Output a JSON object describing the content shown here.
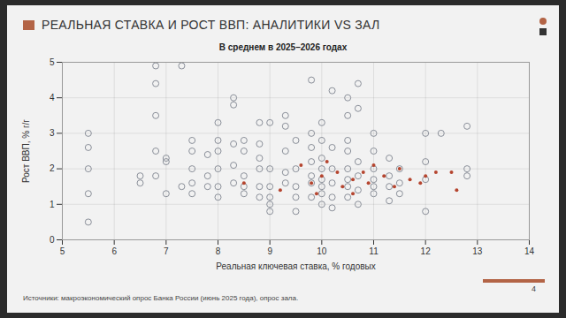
{
  "chart_data": {
    "type": "scatter",
    "title": "РЕАЛЬНАЯ СТАВКА И РОСТ ВВП: АНАЛИТИКИ VS ЗАЛ",
    "subtitle": "В среднем в 2025–2026 годах",
    "xlabel": "Реальная ключевая ставка, % годовых",
    "ylabel": "Рост ВВП, % г/г",
    "source": "Источники: макроэкономический опрос Банка России (июнь 2025 года), опрос зала.",
    "page": "4",
    "xlim": [
      5,
      14
    ],
    "xticks": [
      5,
      6,
      7,
      8,
      9,
      10,
      11,
      12,
      13,
      14
    ],
    "ylim": [
      0,
      5
    ],
    "yticks": [
      0,
      1,
      2,
      3,
      4,
      5
    ],
    "grid": true,
    "series": [
      {
        "color": "#8a8f99",
        "marker": "circle_open",
        "x": [
          5.5,
          5.5,
          5.5,
          5.5,
          5.5,
          6.5,
          6.5,
          6.8,
          6.8,
          6.8,
          6.8,
          6.8,
          7,
          7,
          7,
          7.3,
          7.3,
          7.5,
          7.5,
          7.5,
          7.5,
          7.5,
          7.8,
          7.8,
          7.8,
          8,
          8,
          8,
          8,
          8,
          8,
          8.3,
          8.3,
          8.3,
          8.3,
          8.3,
          8.5,
          8.5,
          8.5,
          8.5,
          8.5,
          8.8,
          8.8,
          8.8,
          8.8,
          8.8,
          8.8,
          9,
          9,
          9,
          9,
          9,
          9,
          9.3,
          9.3,
          9.3,
          9.3,
          9.3,
          9.5,
          9.5,
          9.5,
          9.5,
          9.5,
          9.8,
          9.8,
          9.8,
          9.8,
          9.8,
          9.8,
          9.8,
          10,
          10,
          10,
          10,
          10,
          10,
          10,
          10,
          10.2,
          10.2,
          10.2,
          10.2,
          10.2,
          10.2,
          10.5,
          10.5,
          10.5,
          10.5,
          10.5,
          10.5,
          10.5,
          10.5,
          10.7,
          10.7,
          10.7,
          10.7,
          10.7,
          10.7,
          11,
          11,
          11,
          11,
          11,
          11,
          11.3,
          11.3,
          11.3,
          11.3,
          11.5,
          11.5,
          11.5,
          12,
          12,
          12,
          12,
          12.3,
          12.8,
          12.8,
          12.8
        ],
        "values": [
          3.0,
          2.6,
          2.0,
          1.3,
          0.5,
          1.8,
          1.6,
          4.9,
          4.4,
          3.5,
          2.5,
          1.8,
          2.2,
          2.3,
          1.3,
          4.9,
          1.5,
          2.8,
          2.5,
          2.0,
          1.6,
          1.3,
          2.4,
          1.5,
          1.8,
          3.3,
          2.8,
          2.5,
          2.0,
          1.5,
          1.2,
          3.8,
          4.0,
          2.7,
          2.1,
          1.6,
          2.8,
          2.5,
          1.8,
          1.5,
          1.3,
          3.3,
          2.7,
          2.3,
          2.0,
          1.5,
          1.2,
          2.0,
          1.5,
          1.2,
          1.0,
          0.8,
          3.3,
          3.5,
          3.2,
          2.5,
          1.9,
          1.6,
          2.8,
          2.0,
          1.5,
          1.2,
          0.8,
          4.5,
          3.0,
          2.6,
          2.2,
          1.8,
          1.6,
          1.2,
          3.3,
          2.8,
          2.3,
          2.0,
          1.7,
          1.5,
          1.3,
          1.0,
          4.2,
          2.6,
          2.0,
          1.6,
          1.2,
          0.9,
          4.0,
          3.5,
          2.8,
          2.5,
          2.0,
          1.7,
          1.5,
          1.2,
          4.4,
          3.7,
          2.2,
          1.8,
          1.4,
          1.0,
          3.0,
          2.5,
          2.0,
          1.7,
          1.5,
          1.3,
          2.3,
          1.8,
          1.5,
          1.1,
          2.0,
          1.6,
          1.3,
          3.0,
          2.2,
          1.7,
          0.8,
          3.0,
          3.2,
          2.0,
          1.8
        ]
      },
      {
        "color": "#b5452f",
        "marker": "circle",
        "x": [
          8.5,
          9.2,
          9.6,
          9.8,
          10.0,
          10.1,
          10.3,
          10.4,
          10.6,
          10.8,
          10.9,
          11.0,
          11.2,
          11.4,
          11.5,
          11.7,
          11.9,
          12.0,
          12.2,
          12.5,
          12.6,
          10.6,
          9.9
        ],
        "values": [
          1.6,
          1.4,
          2.1,
          1.6,
          1.8,
          2.2,
          1.9,
          1.5,
          1.7,
          1.9,
          1.6,
          2.1,
          1.8,
          1.5,
          2.0,
          1.7,
          1.6,
          1.8,
          1.9,
          1.9,
          1.4,
          1.3,
          1.3
        ]
      }
    ]
  }
}
